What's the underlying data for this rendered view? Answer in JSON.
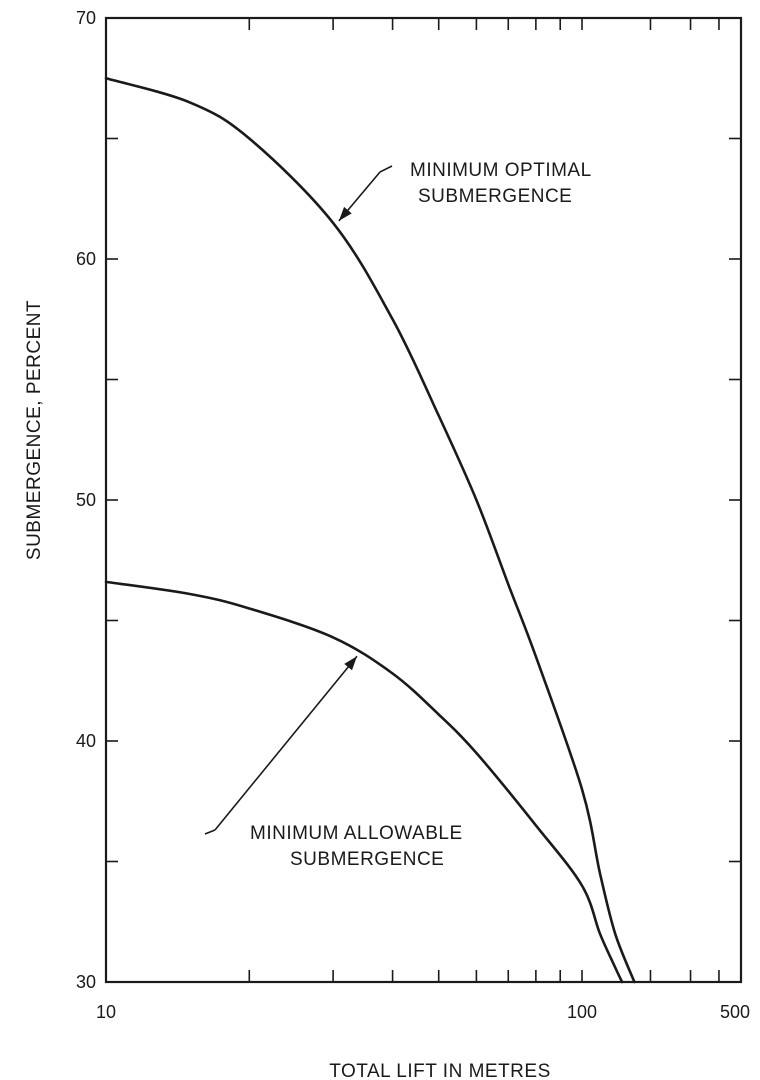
{
  "chart_data": {
    "type": "line",
    "title": "",
    "xlabel": "TOTAL LIFT  IN  METRES",
    "ylabel": "SUBMERGENCE,  PERCENT",
    "x_scale": "log",
    "xlim": [
      10,
      500
    ],
    "ylim": [
      30,
      70
    ],
    "x_tick_labels": [
      {
        "value": 10,
        "label": "10"
      },
      {
        "value": 100,
        "label": "100"
      },
      {
        "value": 500,
        "label": "500"
      }
    ],
    "x_minor_ticks": [
      20,
      30,
      40,
      50,
      60,
      70,
      80,
      90,
      200,
      300,
      400
    ],
    "y_tick_labels": [
      {
        "value": 30,
        "label": "30"
      },
      {
        "value": 40,
        "label": "40"
      },
      {
        "value": 50,
        "label": "50"
      },
      {
        "value": 60,
        "label": "60"
      },
      {
        "value": 70,
        "label": "70"
      }
    ],
    "y_minor_ticks": [
      35,
      45,
      55,
      65
    ],
    "grid": false,
    "series": [
      {
        "name": "MINIMUM  OPTIMAL SUBMERGENCE",
        "x": [
          10,
          15,
          20,
          30,
          40,
          50,
          60,
          70,
          80,
          100,
          120,
          140,
          170
        ],
        "y": [
          67.5,
          66.5,
          65.0,
          61.5,
          57.5,
          53.5,
          50.0,
          46.5,
          43.5,
          38.0,
          34.5,
          32.0,
          30.0
        ]
      },
      {
        "name": "MINIMUM  ALLOWABLE SUBMERGENCE",
        "x": [
          10,
          15,
          20,
          30,
          40,
          50,
          60,
          80,
          100,
          120,
          140,
          150
        ],
        "y": [
          46.6,
          46.1,
          45.5,
          44.3,
          42.8,
          41.1,
          39.5,
          36.5,
          34.0,
          32.0,
          30.6,
          30.0
        ]
      }
    ],
    "annotations": [
      {
        "lines": [
          "MINIMUM   OPTIMAL",
          "SUBMERGENCE"
        ],
        "points_to": {
          "series": 0,
          "x": 31,
          "y": 61.5
        }
      },
      {
        "lines": [
          "MINIMUM    ALLOWABLE",
          "SUBMERGENCE"
        ],
        "points_to": {
          "series": 1,
          "x": 34,
          "y": 43.6
        }
      }
    ]
  }
}
